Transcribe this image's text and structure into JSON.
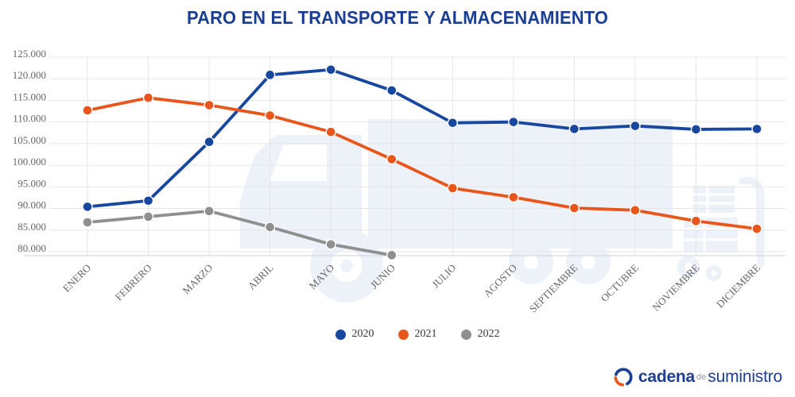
{
  "chart_data": {
    "type": "line",
    "title": "PARO EN EL TRANSPORTE Y ALMACENAMIENTO",
    "categories": [
      "ENERO",
      "FEBRERO",
      "MARZO",
      "ABRIL",
      "MAYO",
      "JUNIO",
      "JULIO",
      "AGOSTO",
      "SEPTIEMBRE",
      "OCTUBRE",
      "NOVIEMBRE",
      "DICIEMBRE"
    ],
    "series": [
      {
        "name": "2020",
        "color": "#17479e",
        "values": [
          90400,
          91800,
          105400,
          120900,
          122100,
          117300,
          109800,
          110000,
          108400,
          109100,
          108300,
          108400
        ]
      },
      {
        "name": "2021",
        "color": "#e8561b",
        "values": [
          112700,
          115600,
          113900,
          111500,
          107700,
          101400,
          94700,
          92600,
          90100,
          89600,
          87100,
          85300
        ]
      },
      {
        "name": "2022",
        "color": "#8f8f8f",
        "values": [
          86800,
          88100,
          89400,
          85700,
          81700,
          79200,
          null,
          null,
          null,
          null,
          null,
          null
        ]
      }
    ],
    "yticks": [
      80000,
      85000,
      90000,
      95000,
      100000,
      105000,
      110000,
      115000,
      120000,
      125000
    ],
    "ytick_labels": [
      "80.000",
      "85.000",
      "90.000",
      "95.000",
      "100.000",
      "105.000",
      "110.000",
      "115.000",
      "120.000",
      "125.000"
    ],
    "ylim": [
      79000,
      126000
    ],
    "xlabel": "",
    "ylabel": "",
    "grid": true,
    "legend_position": "bottom",
    "gridline_color": "#e6e6e6",
    "axis_line_color": "#ccd1dc",
    "watermark_color": "#edf1f8"
  },
  "footer": {
    "logo": {
      "cadena": "cadena",
      "de": "de",
      "suministro": "suministro"
    }
  }
}
